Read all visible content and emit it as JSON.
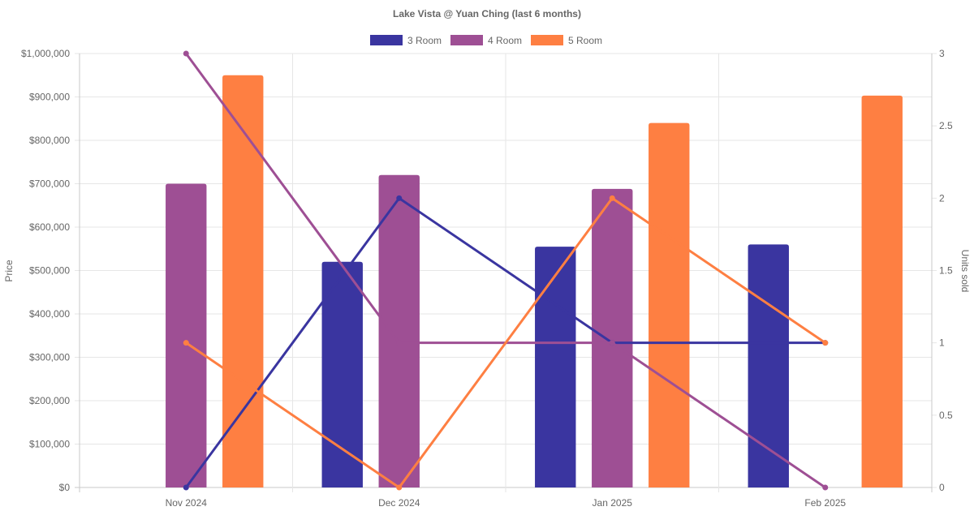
{
  "chart_data": {
    "title": "Lake Vista @ Yuan Ching (last 6 months)",
    "categories": [
      "Nov 2024",
      "Dec 2024",
      "Jan 2025",
      "Feb 2025"
    ],
    "y_left": {
      "label": "Price",
      "range": [
        0,
        1000000
      ],
      "ticks": [
        "$0",
        "$100,000",
        "$200,000",
        "$300,000",
        "$400,000",
        "$500,000",
        "$600,000",
        "$700,000",
        "$800,000",
        "$900,000",
        "$1,000,000"
      ]
    },
    "y_right": {
      "label": "Units sold",
      "range": [
        0,
        3
      ],
      "ticks": [
        "0",
        "0.5",
        "1",
        "1.5",
        "2",
        "2.5",
        "3"
      ]
    },
    "grid": true,
    "legend_position": "top",
    "series": [
      {
        "name": "3 Room",
        "color": "#3a35a0",
        "bar_values": [
          null,
          520000,
          555000,
          560000
        ],
        "line_values": [
          0,
          2,
          1,
          1
        ]
      },
      {
        "name": "4 Room",
        "color": "#9e4f94",
        "bar_values": [
          700000,
          720000,
          688000,
          null
        ],
        "line_values": [
          3,
          1,
          1,
          0
        ]
      },
      {
        "name": "5 Room",
        "color": "#fe7f42",
        "bar_values": [
          950000,
          null,
          840000,
          903000
        ],
        "line_values": [
          1,
          0,
          2,
          1
        ]
      }
    ]
  }
}
